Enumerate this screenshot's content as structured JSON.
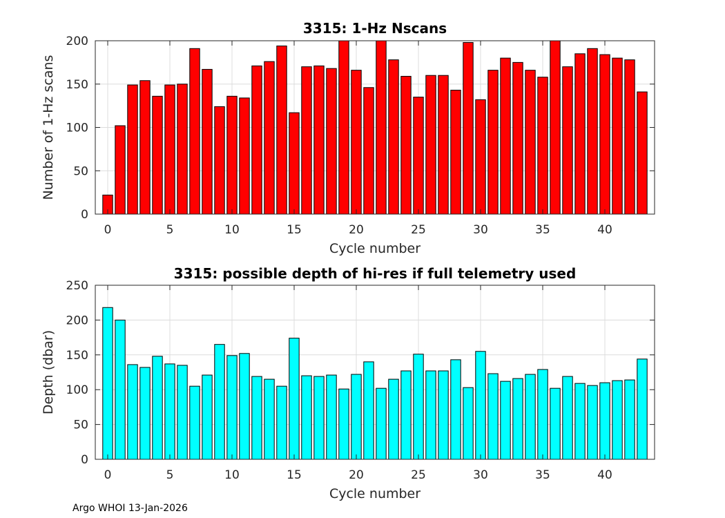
{
  "chart_data": [
    {
      "type": "bar",
      "title": "3315: 1-Hz Nscans",
      "xlabel": "Cycle number",
      "ylabel": "Number of 1-Hz scans",
      "xlim": [
        -1,
        44
      ],
      "ylim": [
        0,
        200
      ],
      "xticks": [
        0,
        5,
        10,
        15,
        20,
        25,
        30,
        35,
        40
      ],
      "yticks": [
        0,
        50,
        100,
        150,
        200
      ],
      "grid": true,
      "bar_color": "#ff0000",
      "x": [
        0,
        1,
        2,
        3,
        4,
        5,
        6,
        7,
        8,
        9,
        10,
        11,
        12,
        13,
        14,
        15,
        16,
        17,
        18,
        19,
        20,
        21,
        22,
        23,
        24,
        25,
        26,
        27,
        28,
        29,
        30,
        31,
        32,
        33,
        34,
        35,
        36,
        37,
        38,
        39,
        40,
        41,
        42,
        43
      ],
      "values": [
        22,
        102,
        149,
        154,
        136,
        149,
        150,
        191,
        167,
        124,
        136,
        134,
        171,
        176,
        194,
        117,
        170,
        171,
        168,
        200,
        166,
        146,
        200,
        178,
        159,
        135,
        160,
        160,
        143,
        198,
        132,
        166,
        180,
        175,
        166,
        158,
        200,
        170,
        185,
        191,
        184,
        180,
        178,
        141
      ]
    },
    {
      "type": "bar",
      "title": "3315: possible depth of hi-res if full telemetry used",
      "xlabel": "Cycle number",
      "ylabel": "Depth (dbar)",
      "xlim": [
        -1,
        44
      ],
      "ylim": [
        0,
        250
      ],
      "xticks": [
        0,
        5,
        10,
        15,
        20,
        25,
        30,
        35,
        40
      ],
      "yticks": [
        0,
        50,
        100,
        150,
        200,
        250
      ],
      "grid": true,
      "bar_color": "#00ffff",
      "x": [
        0,
        1,
        2,
        3,
        4,
        5,
        6,
        7,
        8,
        9,
        10,
        11,
        12,
        13,
        14,
        15,
        16,
        17,
        18,
        19,
        20,
        21,
        22,
        23,
        24,
        25,
        26,
        27,
        28,
        29,
        30,
        31,
        32,
        33,
        34,
        35,
        36,
        37,
        38,
        39,
        40,
        41,
        42,
        43
      ],
      "values": [
        218,
        200,
        136,
        132,
        148,
        137,
        135,
        105,
        121,
        165,
        149,
        152,
        119,
        115,
        105,
        174,
        120,
        119,
        121,
        101,
        122,
        140,
        102,
        115,
        127,
        151,
        127,
        127,
        143,
        103,
        155,
        123,
        112,
        116,
        122,
        129,
        102,
        119,
        109,
        106,
        110,
        113,
        114,
        144
      ]
    }
  ],
  "footer": "Argo WHOI 13-Jan-2026"
}
